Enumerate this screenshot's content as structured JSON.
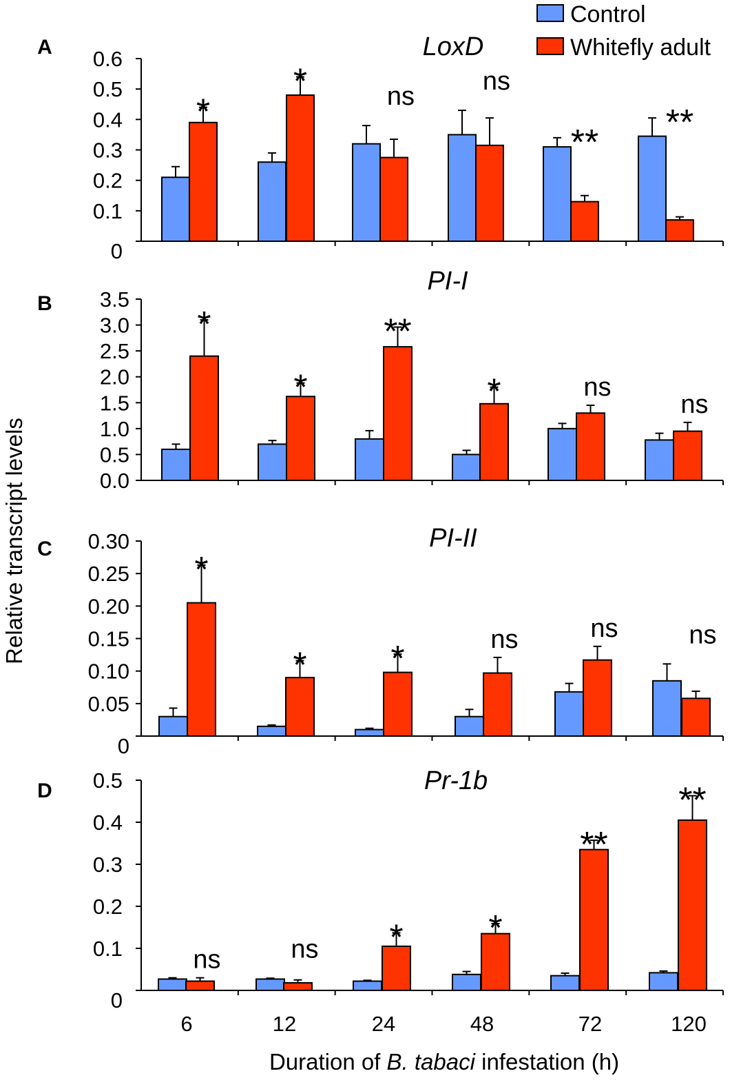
{
  "figure": {
    "ylabel": "Relative transcript levels",
    "xlabel": {
      "prefix": "Duration of ",
      "italic": "B. tabaci",
      "suffix": " infestation (h)"
    },
    "x_categories": [
      "6",
      "12",
      "24",
      "48",
      "72",
      "120"
    ]
  },
  "legend": {
    "items": [
      {
        "label": "Control",
        "color": "#6699ff"
      },
      {
        "label": "Whitefly adult",
        "color": "#ff3300"
      }
    ]
  },
  "colors": {
    "control": "#6699ff",
    "whitefly": "#ff3300",
    "axis": "#000000"
  },
  "chart_data": [
    {
      "type": "bar",
      "panel": "A",
      "title": "LoxD",
      "categories": [
        "6",
        "12",
        "24",
        "48",
        "72",
        "120"
      ],
      "ylim": [
        0,
        0.6
      ],
      "yticks": [
        "0",
        "0.1",
        "0.2",
        "0.3",
        "0.4",
        "0.5",
        "0.6"
      ],
      "ytick_values": [
        0,
        0.1,
        0.2,
        0.3,
        0.4,
        0.5,
        0.6
      ],
      "series": [
        {
          "name": "Control",
          "values": [
            0.21,
            0.26,
            0.32,
            0.35,
            0.31,
            0.345
          ],
          "errors": [
            0.035,
            0.03,
            0.06,
            0.08,
            0.03,
            0.06
          ]
        },
        {
          "name": "Whitefly adult",
          "values": [
            0.39,
            0.48,
            0.275,
            0.315,
            0.13,
            0.07
          ],
          "errors": [
            0.05,
            0.06,
            0.06,
            0.09,
            0.02,
            0.01
          ]
        }
      ],
      "significance": [
        "*",
        "*",
        "ns",
        "ns",
        "**",
        "**"
      ]
    },
    {
      "type": "bar",
      "panel": "B",
      "title": "PI-I",
      "categories": [
        "6",
        "12",
        "24",
        "48",
        "72",
        "120"
      ],
      "ylim": [
        0,
        3.5
      ],
      "yticks": [
        "0.0",
        "0.5",
        "1.0",
        "1.5",
        "2.0",
        "2.5",
        "3.0",
        "3.5"
      ],
      "ytick_values": [
        0,
        0.5,
        1.0,
        1.5,
        2.0,
        2.5,
        3.0,
        3.5
      ],
      "series": [
        {
          "name": "Control",
          "values": [
            0.6,
            0.7,
            0.8,
            0.5,
            1.0,
            0.78
          ],
          "errors": [
            0.1,
            0.07,
            0.16,
            0.08,
            0.1,
            0.13
          ]
        },
        {
          "name": "Whitefly adult",
          "values": [
            2.4,
            1.62,
            2.58,
            1.48,
            1.3,
            0.95
          ],
          "errors": [
            0.7,
            0.26,
            0.38,
            0.32,
            0.15,
            0.17
          ]
        }
      ],
      "significance": [
        "*",
        "*",
        "**",
        "*",
        "ns",
        "ns"
      ]
    },
    {
      "type": "bar",
      "panel": "C",
      "title": "PI-II",
      "categories": [
        "6",
        "12",
        "24",
        "48",
        "72",
        "120"
      ],
      "ylim": [
        0,
        0.3
      ],
      "yticks": [
        "0",
        "0.05",
        "0.10",
        "0.15",
        "0.20",
        "0.25",
        "0.30"
      ],
      "ytick_values": [
        0,
        0.05,
        0.1,
        0.15,
        0.2,
        0.25,
        0.3
      ],
      "series": [
        {
          "name": "Control",
          "values": [
            0.03,
            0.015,
            0.01,
            0.03,
            0.068,
            0.085
          ],
          "errors": [
            0.013,
            0.002,
            0.002,
            0.011,
            0.013,
            0.026
          ]
        },
        {
          "name": "Whitefly adult",
          "values": [
            0.205,
            0.09,
            0.098,
            0.097,
            0.117,
            0.058
          ],
          "errors": [
            0.058,
            0.026,
            0.028,
            0.024,
            0.021,
            0.011
          ]
        }
      ],
      "significance": [
        "*",
        "*",
        "*",
        "ns",
        "ns",
        "ns"
      ]
    },
    {
      "type": "bar",
      "panel": "D",
      "title": "Pr-1b",
      "categories": [
        "6",
        "12",
        "24",
        "48",
        "72",
        "120"
      ],
      "ylim": [
        0,
        0.5
      ],
      "yticks": [
        "0",
        "0.1",
        "0.2",
        "0.3",
        "0.4",
        "0.5"
      ],
      "ytick_values": [
        0,
        0.1,
        0.2,
        0.3,
        0.4,
        0.5
      ],
      "series": [
        {
          "name": "Control",
          "values": [
            0.027,
            0.027,
            0.022,
            0.038,
            0.035,
            0.042
          ],
          "errors": [
            0.003,
            0.002,
            0.002,
            0.007,
            0.006,
            0.004
          ]
        },
        {
          "name": "Whitefly adult",
          "values": [
            0.022,
            0.018,
            0.105,
            0.135,
            0.335,
            0.405
          ],
          "errors": [
            0.008,
            0.007,
            0.032,
            0.024,
            0.022,
            0.058
          ]
        }
      ],
      "significance": [
        "ns",
        "ns",
        "*",
        "*",
        "**",
        "**"
      ]
    }
  ]
}
